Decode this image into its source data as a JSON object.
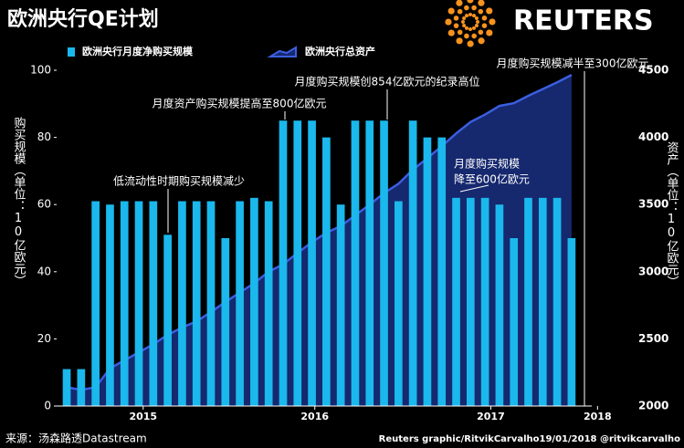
{
  "chart_data": {
    "type": "bar_area",
    "title": "欧洲央行QE计划",
    "brand": "REUTERS",
    "y_label": "购买规模（单位：10亿欧元）",
    "y2_label": "资产（单位：10亿欧元）",
    "source": "来源：汤森路透Datastream",
    "credit": "Reuters graphic/RitvikCarvalho19/01/2018  @ritvikcarvalho",
    "categories": [
      null,
      null,
      null,
      null,
      null,
      null,
      null,
      null,
      null,
      null,
      null,
      null,
      null,
      null,
      null,
      null,
      null,
      null,
      null,
      null,
      null,
      null,
      null,
      null,
      null,
      null,
      null,
      null,
      null,
      null,
      null,
      null,
      null,
      null,
      null,
      null
    ],
    "xlim": [
      -0.7,
      36.4
    ],
    "xticks": [
      {
        "value": 5.3,
        "label": "2015"
      },
      {
        "value": 17.2,
        "label": "2016"
      },
      {
        "value": 29.4,
        "label": "2017"
      },
      {
        "value": 36.8,
        "label": "2018"
      }
    ],
    "ylim": [
      0,
      100
    ],
    "yticks": [
      0,
      20,
      40,
      60,
      80,
      100
    ],
    "y2lim": [
      2000,
      4500
    ],
    "y2ticks": [
      2000,
      2500,
      3000,
      3500,
      4000,
      4500
    ],
    "series": [
      {
        "name": "欧洲央行月度净购买规模",
        "color": "#1ab8ec",
        "kind": "bar",
        "values": [
          11,
          11,
          61,
          60,
          61,
          61,
          61,
          51,
          61,
          61,
          61,
          50,
          61,
          62,
          61,
          85,
          85,
          85,
          80,
          60,
          85,
          85,
          85,
          61,
          85,
          80,
          80,
          62,
          62,
          62,
          60,
          50,
          62,
          62,
          62,
          50
        ]
      },
      {
        "name": "欧洲央行总资产",
        "color": "#3a5fe0",
        "fill": "#16286e",
        "kind": "area",
        "axis": "y2",
        "values": [
          2140,
          2120,
          2140,
          2280,
          2340,
          2400,
          2460,
          2530,
          2585,
          2630,
          2700,
          2775,
          2845,
          2915,
          3000,
          3055,
          3140,
          3220,
          3290,
          3340,
          3420,
          3500,
          3585,
          3655,
          3760,
          3845,
          3935,
          4030,
          4115,
          4170,
          4235,
          4255,
          4310,
          4360,
          4410,
          4465
        ]
      }
    ],
    "annotations": [
      {
        "text": "低流动性时期购买规模减少",
        "index": 7
      },
      {
        "text": "月度资产购买规模提高至800亿欧元",
        "index": 15
      },
      {
        "text": "月度购买规模创854亿欧元的纪录高位",
        "index": 22
      },
      {
        "text": [
          "月度购买规模",
          "降至600亿欧元"
        ],
        "index": 27
      },
      {
        "text": "月度购买规模减半至300亿欧元",
        "index": 36
      }
    ]
  }
}
